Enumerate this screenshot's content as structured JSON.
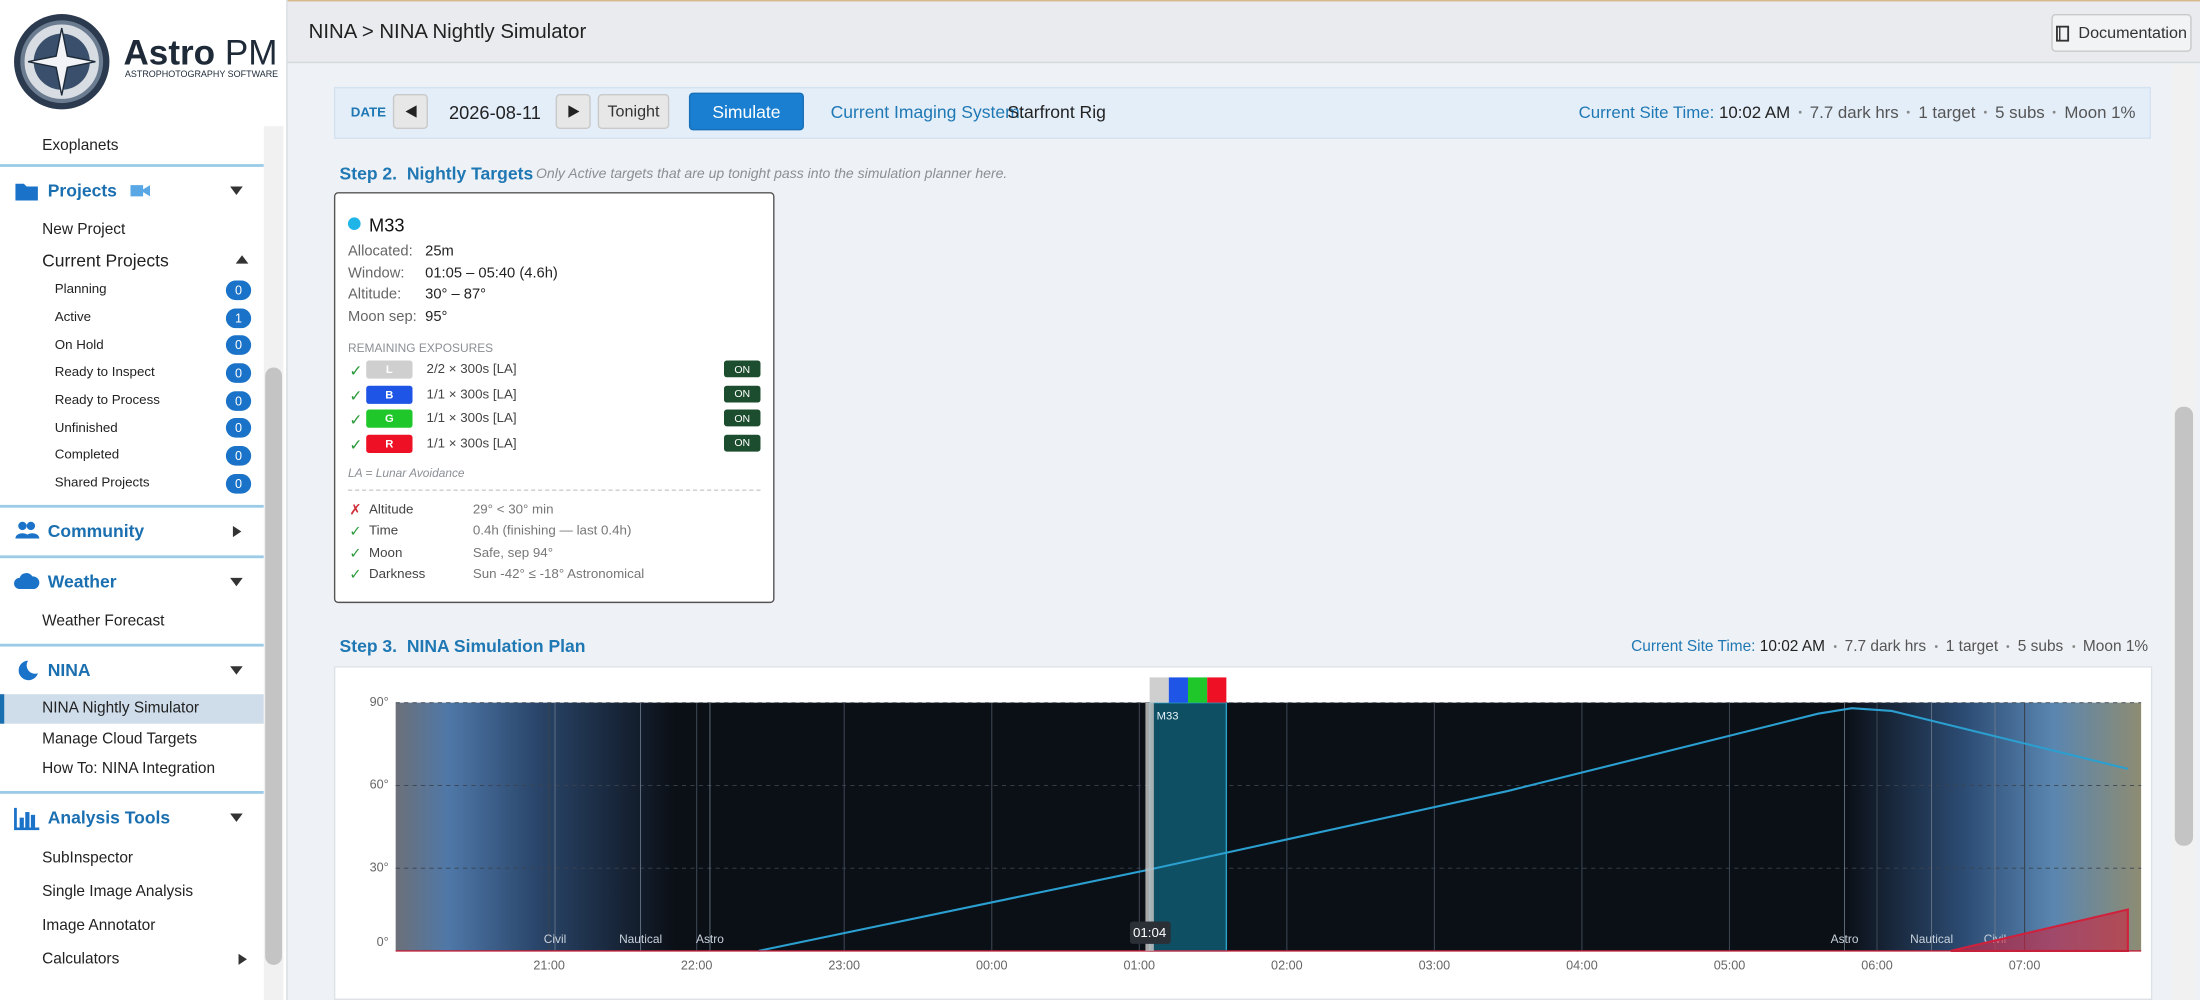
{
  "header": {
    "breadcrumb": "NINA > NINA Nightly Simulator",
    "documentation": "Documentation"
  },
  "sidebar": {
    "logo": {
      "name": "Astro",
      "name_suffix": "PM",
      "tagline": "ASTROPHOTOGRAPHY SOFTWARE"
    },
    "top_item": "Exoplanets",
    "sections": [
      {
        "title": "Projects",
        "expanded": true,
        "items": [
          {
            "label": "New Project"
          },
          {
            "label": "Current Projects",
            "expanded": true,
            "children": [
              {
                "label": "Planning",
                "count": 0
              },
              {
                "label": "Active",
                "count": 1
              },
              {
                "label": "On Hold",
                "count": 0
              },
              {
                "label": "Ready to Inspect",
                "count": 0
              },
              {
                "label": "Ready to Process",
                "count": 0
              },
              {
                "label": "Unfinished",
                "count": 0
              },
              {
                "label": "Completed",
                "count": 0
              },
              {
                "label": "Shared Projects",
                "count": 0
              }
            ]
          }
        ]
      },
      {
        "title": "Community",
        "expanded": false,
        "items": []
      },
      {
        "title": "Weather",
        "expanded": true,
        "items": [
          {
            "label": "Weather Forecast"
          }
        ]
      },
      {
        "title": "NINA",
        "expanded": true,
        "items": [
          {
            "label": "NINA Nightly Simulator",
            "active": true
          },
          {
            "label": "Manage Cloud Targets"
          },
          {
            "label": "How To:  NINA Integration"
          }
        ]
      },
      {
        "title": "Analysis Tools",
        "expanded": true,
        "items": [
          {
            "label": "SubInspector"
          },
          {
            "label": "Single Image Analysis"
          },
          {
            "label": "Image Annotator"
          },
          {
            "label": "Calculators",
            "expanded": false
          }
        ]
      }
    ]
  },
  "toolbar": {
    "date_label": "DATE",
    "date": "2026-08-11",
    "tonight": "Tonight",
    "simulate": "Simulate",
    "imaging_system_label": "Current Imaging System:",
    "imaging_system": "Starfront Rig",
    "site_time_label": "Current Site Time:",
    "site_time": "10:02 AM",
    "stats": [
      "7.7 dark hrs",
      "1 target",
      "5 subs",
      "Moon 1%"
    ]
  },
  "step2": {
    "step": "Step 2.",
    "title": "Nightly Targets",
    "note": "Only Active targets that are up tonight pass into the simulation planner here.",
    "target": {
      "name": "M33",
      "color": "#1fb5e8",
      "fields": [
        {
          "label": "Allocated:",
          "value": "25m"
        },
        {
          "label": "Window:",
          "value": "01:05 – 05:40 (4.6h)"
        },
        {
          "label": "Altitude:",
          "value": "30° – 87°"
        },
        {
          "label": "Moon sep:",
          "value": "95°"
        }
      ],
      "exposures_title": "REMAINING EXPOSURES",
      "exposures": [
        {
          "mark": "✓",
          "filter": "L",
          "color": "#cfcfcf",
          "text": "2/2 × 300s [LA]",
          "state": "ON"
        },
        {
          "mark": "✓",
          "filter": "B",
          "color": "#1f55e6",
          "text": "1/1 × 300s [LA]",
          "state": "ON"
        },
        {
          "mark": "✓",
          "filter": "G",
          "color": "#1fc72a",
          "text": "1/1 × 300s [LA]",
          "state": "ON"
        },
        {
          "mark": "✓",
          "filter": "R",
          "color": "#ee1125",
          "text": "1/1 × 300s [LA]",
          "state": "ON"
        }
      ],
      "legend": "LA = Lunar Avoidance",
      "checks": [
        {
          "mark": "✗",
          "pass": false,
          "label": "Altitude",
          "detail": "29° < 30° min"
        },
        {
          "mark": "✓",
          "pass": true,
          "label": "Time",
          "detail": "0.4h (finishing — last 0.4h)"
        },
        {
          "mark": "✓",
          "pass": true,
          "label": "Moon",
          "detail": "Safe, sep 94°"
        },
        {
          "mark": "✓",
          "pass": true,
          "label": "Darkness",
          "detail": "Sun -42° ≤ -18° Astronomical"
        }
      ]
    }
  },
  "step3": {
    "step": "Step 3.",
    "title": "NINA Simulation Plan",
    "site_time_label": "Current Site Time:",
    "site_time": "10:02 AM",
    "stats": [
      "7.7 dark hrs",
      "1 target",
      "5 subs",
      "Moon 1%"
    ],
    "chart": {
      "xlim": [
        19.96,
        31.79
      ],
      "xticks": [
        {
          "value": 21,
          "label": "21:00"
        },
        {
          "value": 22,
          "label": "22:00"
        },
        {
          "value": 23,
          "label": "23:00"
        },
        {
          "value": 24,
          "label": "00:00"
        },
        {
          "value": 25,
          "label": "01:00"
        },
        {
          "value": 26,
          "label": "02:00"
        },
        {
          "value": 27,
          "label": "03:00"
        },
        {
          "value": 28,
          "label": "04:00"
        },
        {
          "value": 29,
          "label": "05:00"
        },
        {
          "value": 30,
          "label": "06:00"
        },
        {
          "value": 31,
          "label": "07:00"
        }
      ],
      "ylim": [
        0,
        90
      ],
      "yticks": [
        {
          "value": 0,
          "label": "0°"
        },
        {
          "value": 30,
          "label": "30°"
        },
        {
          "value": 60,
          "label": "60°"
        },
        {
          "value": 90,
          "label": "90°"
        }
      ],
      "twilight": [
        {
          "value": 21.04,
          "label": "Civil"
        },
        {
          "value": 21.62,
          "label": "Nautical"
        },
        {
          "value": 22.09,
          "label": "Astro"
        },
        {
          "value": 29.78,
          "label": "Astro"
        },
        {
          "value": 30.37,
          "label": "Nautical"
        },
        {
          "value": 30.8,
          "label": "Civil"
        }
      ],
      "altitude": {
        "color": "#2a9fd0",
        "x": [
          22.42,
          25.07,
          27.5,
          29.6,
          29.83,
          30.1,
          31.7
        ],
        "values": [
          0,
          29.5,
          58,
          86,
          88,
          87,
          66
        ]
      },
      "moon": {
        "color": "#d0213c",
        "x": [
          30.5,
          31.7
        ],
        "values": [
          0,
          15
        ]
      },
      "session": {
        "name": "M33",
        "start": 25.07,
        "end": 25.59,
        "color": "#0f4f63"
      },
      "now": {
        "value": 25.07,
        "label": "01:04"
      }
    }
  }
}
